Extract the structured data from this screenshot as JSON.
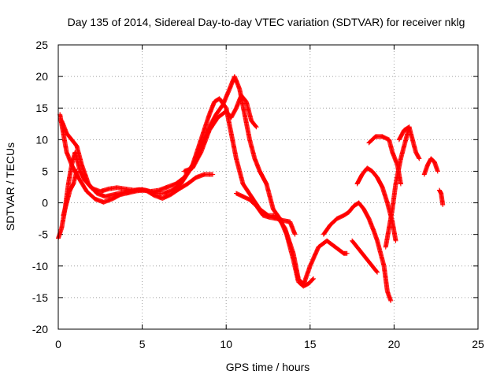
{
  "chart_data": {
    "type": "scatter",
    "title": "Day 135 of 2014, Sidereal Day-to-day VTEC variation (SDTVAR) for receiver nklg",
    "xlabel": "GPS time / hours",
    "ylabel": "SDTVAR / TECUs",
    "xlim": [
      0,
      25
    ],
    "ylim": [
      -20,
      25
    ],
    "grid": true,
    "xticks": [
      0,
      5,
      10,
      15,
      20,
      25
    ],
    "xtick_labels": [
      "0",
      "5",
      "10",
      "15",
      "20",
      "25"
    ],
    "yticks": [
      -20,
      -15,
      -10,
      -5,
      0,
      5,
      10,
      15,
      20,
      25
    ],
    "ytick_labels": [
      "-20",
      "-15",
      "-10",
      "-5",
      "0",
      "5",
      "10",
      "15",
      "20",
      "25"
    ],
    "marker": "plus",
    "color": "#ff0000",
    "series": [
      {
        "name": "track-1",
        "points": [
          [
            0.0,
            -5.6
          ],
          [
            0.2,
            -4
          ],
          [
            0.4,
            -1
          ],
          [
            0.6,
            3
          ],
          [
            0.8,
            6
          ],
          [
            1.0,
            8
          ],
          [
            1.3,
            5
          ],
          [
            1.6,
            3.5
          ],
          [
            2,
            2.3
          ],
          [
            2.5,
            1.8
          ],
          [
            3,
            2.2
          ],
          [
            3.5,
            2.4
          ],
          [
            4,
            2.2
          ],
          [
            4.5,
            2
          ],
          [
            5,
            2.1
          ],
          [
            5.5,
            1.8
          ],
          [
            6,
            2
          ],
          [
            6.5,
            2.5
          ],
          [
            7,
            3
          ],
          [
            7.5,
            4
          ],
          [
            8,
            6
          ],
          [
            8.5,
            10
          ],
          [
            9,
            14
          ],
          [
            9.3,
            16
          ],
          [
            9.6,
            16.5
          ],
          [
            10,
            15
          ],
          [
            10.3,
            11
          ],
          [
            10.6,
            7
          ],
          [
            11,
            3
          ],
          [
            11.5,
            1
          ],
          [
            12,
            -1
          ],
          [
            12.5,
            -2
          ],
          [
            13,
            -2
          ],
          [
            13.5,
            -4
          ],
          [
            14,
            -8
          ],
          [
            14.3,
            -12
          ],
          [
            14.6,
            -13
          ],
          [
            15,
            -10
          ],
          [
            15.5,
            -7
          ],
          [
            16,
            -6
          ],
          [
            16.5,
            -7
          ],
          [
            17,
            -8
          ],
          [
            17.2,
            -8
          ]
        ]
      },
      {
        "name": "track-2",
        "points": [
          [
            0.1,
            14
          ],
          [
            0.3,
            11
          ],
          [
            0.5,
            8
          ],
          [
            0.8,
            6
          ],
          [
            1.2,
            4
          ],
          [
            1.7,
            1.8
          ],
          [
            2.2,
            0.6
          ],
          [
            2.7,
            0.1
          ],
          [
            3.2,
            0.6
          ],
          [
            3.7,
            1.3
          ],
          [
            4.2,
            1.6
          ],
          [
            4.7,
            1.9
          ],
          [
            5.2,
            2
          ],
          [
            5.7,
            1.2
          ],
          [
            6.2,
            0.7
          ],
          [
            6.7,
            1.3
          ],
          [
            7.2,
            2.2
          ],
          [
            7.7,
            3
          ],
          [
            8.2,
            4
          ],
          [
            8.7,
            4.5
          ],
          [
            9.2,
            4.5
          ]
        ]
      },
      {
        "name": "track-3",
        "points": [
          [
            0.2,
            13
          ],
          [
            0.5,
            11
          ],
          [
            0.8,
            10
          ],
          [
            1.1,
            9
          ],
          [
            1.4,
            6
          ],
          [
            1.8,
            3
          ],
          [
            2.3,
            1.5
          ],
          [
            2.8,
            1
          ],
          [
            3.3,
            1.3
          ],
          [
            3.8,
            1.6
          ],
          [
            4.3,
            1.8
          ],
          [
            4.8,
            2.1
          ],
          [
            5.3,
            1.9
          ],
          [
            5.8,
            1.5
          ],
          [
            6.3,
            1.5
          ],
          [
            6.8,
            2
          ],
          [
            7.3,
            3
          ],
          [
            7.8,
            5
          ],
          [
            8.2,
            7
          ],
          [
            8.6,
            9.5
          ],
          [
            9,
            12
          ],
          [
            9.4,
            14
          ],
          [
            9.8,
            15.5
          ],
          [
            10.2,
            18
          ],
          [
            10.5,
            20
          ],
          [
            10.8,
            18
          ],
          [
            11.1,
            14
          ],
          [
            11.4,
            10
          ],
          [
            11.7,
            7
          ],
          [
            12,
            5
          ],
          [
            12.4,
            3
          ],
          [
            12.8,
            -1
          ],
          [
            13.2,
            -2.5
          ],
          [
            13.6,
            -5
          ],
          [
            14,
            -9
          ],
          [
            14.3,
            -12.5
          ],
          [
            14.6,
            -13.2
          ],
          [
            14.9,
            -12.8
          ],
          [
            15.2,
            -12
          ]
        ]
      },
      {
        "name": "track-4",
        "points": [
          [
            0.3,
            -2
          ],
          [
            0.5,
            0
          ],
          [
            0.7,
            2
          ],
          [
            0.9,
            3
          ],
          [
            1.1,
            5
          ]
        ]
      },
      {
        "name": "track-5",
        "points": [
          [
            7.5,
            5
          ],
          [
            8,
            5.5
          ],
          [
            8.5,
            8
          ],
          [
            9,
            11.5
          ],
          [
            9.5,
            13.5
          ],
          [
            10,
            14.5
          ],
          [
            10.3,
            13.5
          ],
          [
            10.6,
            15
          ],
          [
            10.9,
            17
          ],
          [
            11.2,
            16
          ],
          [
            11.5,
            13
          ],
          [
            11.8,
            12
          ]
        ]
      },
      {
        "name": "track-6",
        "points": [
          [
            10.6,
            1.5
          ],
          [
            11,
            1
          ],
          [
            11.4,
            0.5
          ],
          [
            11.8,
            -0.5
          ],
          [
            12.2,
            -2
          ],
          [
            12.6,
            -2.3
          ],
          [
            13,
            -2.5
          ],
          [
            13.4,
            -2.8
          ],
          [
            13.8,
            -3
          ],
          [
            14.1,
            -5
          ]
        ]
      },
      {
        "name": "track-7",
        "points": [
          [
            15.8,
            -5
          ],
          [
            16.2,
            -3.5
          ],
          [
            16.6,
            -2.5
          ],
          [
            17,
            -2
          ],
          [
            17.3,
            -1.5
          ],
          [
            17.6,
            -0.5
          ],
          [
            17.9,
            0
          ]
        ]
      },
      {
        "name": "track-8",
        "points": [
          [
            17.9,
            0
          ],
          [
            18.2,
            -1
          ],
          [
            18.5,
            -2.5
          ],
          [
            18.8,
            -4.5
          ],
          [
            19,
            -6
          ],
          [
            19.2,
            -8
          ],
          [
            19.4,
            -10
          ],
          [
            19.5,
            -12
          ],
          [
            19.6,
            -14
          ],
          [
            19.8,
            -15.5
          ]
        ]
      },
      {
        "name": "track-9",
        "points": [
          [
            17.5,
            -6
          ],
          [
            17.8,
            -7
          ],
          [
            18.1,
            -8
          ],
          [
            18.4,
            -9
          ],
          [
            18.7,
            -10
          ],
          [
            19,
            -11
          ]
        ]
      },
      {
        "name": "track-10",
        "points": [
          [
            17.8,
            3
          ],
          [
            18.1,
            4.5
          ],
          [
            18.4,
            5.5
          ],
          [
            18.7,
            5
          ],
          [
            19,
            4
          ],
          [
            19.3,
            2.5
          ],
          [
            19.6,
            0
          ],
          [
            19.9,
            -3
          ],
          [
            20.1,
            -6
          ]
        ]
      },
      {
        "name": "track-11",
        "points": [
          [
            18.5,
            9.5
          ],
          [
            18.9,
            10.5
          ],
          [
            19.3,
            10.5
          ],
          [
            19.7,
            10
          ],
          [
            19.9,
            8
          ],
          [
            20.2,
            6
          ],
          [
            20.4,
            3
          ]
        ]
      },
      {
        "name": "track-12",
        "points": [
          [
            19.5,
            -7
          ],
          [
            19.7,
            -4
          ],
          [
            19.9,
            -1
          ],
          [
            20.1,
            3
          ],
          [
            20.4,
            7
          ],
          [
            20.7,
            10
          ],
          [
            20.9,
            12
          ]
        ]
      },
      {
        "name": "track-13",
        "points": [
          [
            20.3,
            10
          ],
          [
            20.6,
            11.5
          ],
          [
            20.9,
            12
          ],
          [
            21.1,
            10
          ],
          [
            21.3,
            8
          ],
          [
            21.5,
            7
          ]
        ]
      },
      {
        "name": "track-14",
        "points": [
          [
            21.8,
            4.5
          ],
          [
            22,
            6
          ],
          [
            22.2,
            7
          ],
          [
            22.4,
            6.5
          ],
          [
            22.6,
            5
          ]
        ]
      },
      {
        "name": "track-15",
        "points": [
          [
            22.7,
            2
          ],
          [
            22.8,
            1.5
          ],
          [
            22.9,
            -0.3
          ]
        ]
      }
    ]
  }
}
